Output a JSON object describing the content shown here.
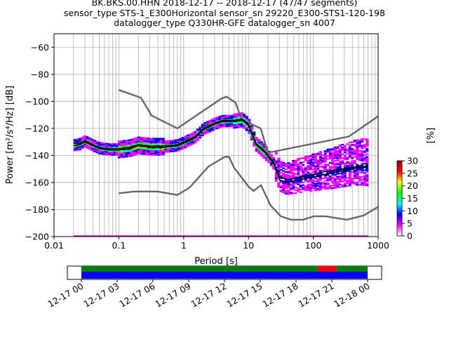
{
  "title_lines": [
    "BK.BKS.00.HHN   2018-12-17 -- 2018-12-17  (47/47 segments)",
    "sensor_type STS-1_E300Horizontal sensor_sn 29220_E300-STS1-120-198",
    "datalogger_type Q330HR-GFE datalogger_sn 4007"
  ],
  "chart_data": {
    "type": "heatmap",
    "xlabel": "Period [s]",
    "ylabel": "Power [m²/s⁴/Hz] [dB]",
    "x_scale": "log",
    "xlim": [
      0.01,
      1000
    ],
    "ylim": [
      -200,
      -50
    ],
    "x_ticks": [
      0.01,
      0.1,
      1,
      10,
      100,
      1000
    ],
    "x_tick_labels": [
      "0.01",
      "0.1",
      "1",
      "10",
      "100",
      "1000"
    ],
    "y_ticks": [
      -60,
      -80,
      -100,
      -120,
      -140,
      -160,
      -180,
      -200
    ],
    "grid": true,
    "colorbar": {
      "label": "[%]",
      "range": [
        0,
        30
      ],
      "ticks": [
        0,
        5,
        10,
        15,
        20,
        25,
        30
      ],
      "colors": [
        "#ffffff",
        "#ff00ff",
        "#0000ff",
        "#00ffff",
        "#00ff00",
        "#ffff00",
        "#ff0000",
        "#990000"
      ]
    },
    "series": [
      {
        "role": "noise-model-high",
        "color": "#666666",
        "points": [
          [
            0.1,
            -91.5
          ],
          [
            0.22,
            -97.4
          ],
          [
            0.32,
            -110.5
          ],
          [
            0.8,
            -120
          ],
          [
            3.8,
            -98
          ],
          [
            4.6,
            -96.5
          ],
          [
            6.3,
            -101
          ],
          [
            7.9,
            -113.5
          ],
          [
            15.4,
            -120
          ],
          [
            20,
            -138
          ],
          [
            354,
            -126
          ],
          [
            1000,
            -111
          ]
        ]
      },
      {
        "role": "noise-model-low",
        "color": "#666666",
        "points": [
          [
            0.1,
            -168
          ],
          [
            0.17,
            -166.7
          ],
          [
            0.4,
            -166.7
          ],
          [
            0.8,
            -169.2
          ],
          [
            1.24,
            -163.7
          ],
          [
            2.4,
            -148.3
          ],
          [
            4.3,
            -141.1
          ],
          [
            5,
            -141.1
          ],
          [
            6,
            -149.1
          ],
          [
            10,
            -163
          ],
          [
            12,
            -166.2
          ],
          [
            15.6,
            -162
          ],
          [
            21.9,
            -177
          ],
          [
            31.6,
            -185
          ],
          [
            45,
            -187.5
          ],
          [
            70,
            -187.5
          ],
          [
            101,
            -185
          ],
          [
            154,
            -185
          ],
          [
            328,
            -187.5
          ],
          [
            600,
            -184.4
          ],
          [
            1000,
            -178
          ]
        ]
      },
      {
        "role": "mode",
        "color": "#000000",
        "points": [
          [
            0.02,
            -133
          ],
          [
            0.025,
            -132
          ],
          [
            0.03,
            -130
          ],
          [
            0.04,
            -133
          ],
          [
            0.05,
            -135
          ],
          [
            0.07,
            -136
          ],
          [
            0.1,
            -136
          ],
          [
            0.15,
            -135
          ],
          [
            0.2,
            -133
          ],
          [
            0.3,
            -134
          ],
          [
            0.5,
            -134
          ],
          [
            0.8,
            -133
          ],
          [
            1,
            -131
          ],
          [
            1.5,
            -127
          ],
          [
            2,
            -121
          ],
          [
            3,
            -117
          ],
          [
            4,
            -115
          ],
          [
            6,
            -115
          ],
          [
            8,
            -114
          ],
          [
            10,
            -118
          ],
          [
            13,
            -132
          ],
          [
            18,
            -138
          ],
          [
            25,
            -147
          ],
          [
            30,
            -158
          ],
          [
            40,
            -160
          ],
          [
            60,
            -158
          ],
          [
            100,
            -156
          ],
          [
            150,
            -154
          ],
          [
            200,
            -153
          ],
          [
            300,
            -151
          ],
          [
            500,
            -149
          ],
          [
            700,
            -149
          ]
        ]
      },
      {
        "role": "mean",
        "color": "#000000",
        "points": [
          [
            0.02,
            -131
          ],
          [
            0.025,
            -131
          ],
          [
            0.03,
            -129
          ],
          [
            0.04,
            -132
          ],
          [
            0.05,
            -134
          ],
          [
            0.07,
            -135
          ],
          [
            0.1,
            -135
          ],
          [
            0.15,
            -134
          ],
          [
            0.2,
            -132
          ],
          [
            0.3,
            -133
          ],
          [
            0.5,
            -133
          ],
          [
            0.8,
            -132
          ],
          [
            1,
            -130
          ],
          [
            1.5,
            -126
          ],
          [
            2,
            -120
          ],
          [
            3,
            -116
          ],
          [
            4,
            -114
          ],
          [
            6,
            -114
          ],
          [
            8,
            -113
          ],
          [
            10,
            -117
          ],
          [
            13,
            -131
          ],
          [
            18,
            -137
          ],
          [
            25,
            -146
          ],
          [
            30,
            -156
          ],
          [
            40,
            -158
          ],
          [
            60,
            -156
          ],
          [
            100,
            -154
          ],
          [
            150,
            -152
          ],
          [
            200,
            -151
          ],
          [
            300,
            -150
          ],
          [
            500,
            -148
          ],
          [
            700,
            -148
          ]
        ]
      }
    ],
    "bottom_axis_line": {
      "value": -200,
      "color": "#cc00cc"
    }
  },
  "timeline": {
    "tick_labels": [
      "12-17 00",
      "12-17 03",
      "12-17 06",
      "12-17 09",
      "12-17 12",
      "12-17 15",
      "12-17 18",
      "12-17 21",
      "12-18 00"
    ],
    "data_bar_color": "#0000ff",
    "segments": [
      {
        "from_hours": 0,
        "to_hours": 19.8,
        "color": "#008000"
      },
      {
        "from_hours": 19.8,
        "to_hours": 21.4,
        "color": "#ff0000"
      },
      {
        "from_hours": 21.4,
        "to_hours": 24,
        "color": "#008000"
      }
    ]
  }
}
